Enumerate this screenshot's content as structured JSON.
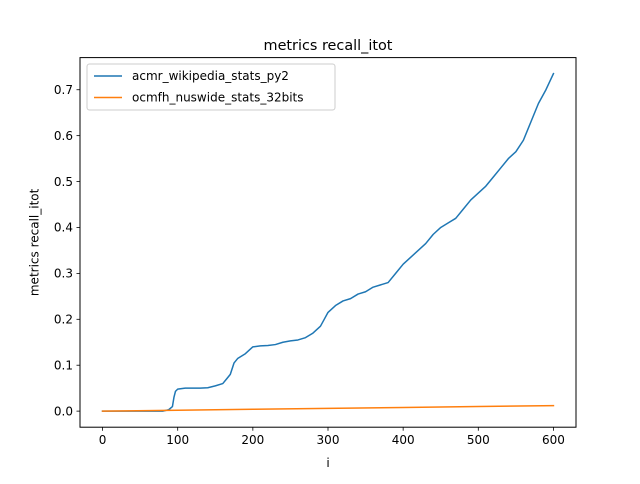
{
  "chart_data": {
    "type": "line",
    "title": "metrics recall_itot",
    "xlabel": "i",
    "ylabel": "metrics recall_itot",
    "xlim": [
      -30,
      630
    ],
    "ylim": [
      -0.035,
      0.77
    ],
    "xticks": [
      0,
      100,
      200,
      300,
      400,
      500,
      600
    ],
    "yticks": [
      0.0,
      0.1,
      0.2,
      0.3,
      0.4,
      0.5,
      0.6,
      0.7
    ],
    "ytick_labels": [
      "0.0",
      "0.1",
      "0.2",
      "0.3",
      "0.4",
      "0.5",
      "0.6",
      "0.7"
    ],
    "grid": false,
    "legend_position": "top-left",
    "series": [
      {
        "name": "acmr_wikipedia_stats_py2",
        "color": "#1f77b4",
        "x": [
          0,
          20,
          40,
          60,
          80,
          88,
          93,
          95,
          97,
          100,
          110,
          120,
          130,
          140,
          150,
          160,
          165,
          170,
          175,
          180,
          190,
          200,
          210,
          220,
          230,
          240,
          250,
          260,
          270,
          280,
          290,
          295,
          300,
          310,
          320,
          330,
          340,
          350,
          360,
          370,
          380,
          390,
          400,
          410,
          420,
          430,
          440,
          450,
          460,
          470,
          480,
          490,
          500,
          510,
          520,
          530,
          540,
          550,
          560,
          570,
          580,
          590,
          600
        ],
        "y": [
          0.0,
          0.0,
          0.0,
          0.0,
          0.0,
          0.003,
          0.01,
          0.03,
          0.043,
          0.048,
          0.05,
          0.05,
          0.05,
          0.051,
          0.055,
          0.06,
          0.07,
          0.08,
          0.105,
          0.115,
          0.125,
          0.14,
          0.142,
          0.143,
          0.145,
          0.15,
          0.153,
          0.155,
          0.16,
          0.17,
          0.185,
          0.2,
          0.215,
          0.23,
          0.24,
          0.245,
          0.255,
          0.26,
          0.27,
          0.275,
          0.28,
          0.3,
          0.32,
          0.335,
          0.35,
          0.365,
          0.385,
          0.4,
          0.41,
          0.42,
          0.44,
          0.46,
          0.475,
          0.49,
          0.51,
          0.53,
          0.55,
          0.565,
          0.59,
          0.63,
          0.67,
          0.7,
          0.735
        ]
      },
      {
        "name": "ocmfh_nuswide_stats_32bits",
        "color": "#ff7f0e",
        "x": [
          0,
          100,
          200,
          300,
          400,
          500,
          600
        ],
        "y": [
          0.0,
          0.002,
          0.004,
          0.006,
          0.008,
          0.01,
          0.012
        ]
      }
    ]
  }
}
